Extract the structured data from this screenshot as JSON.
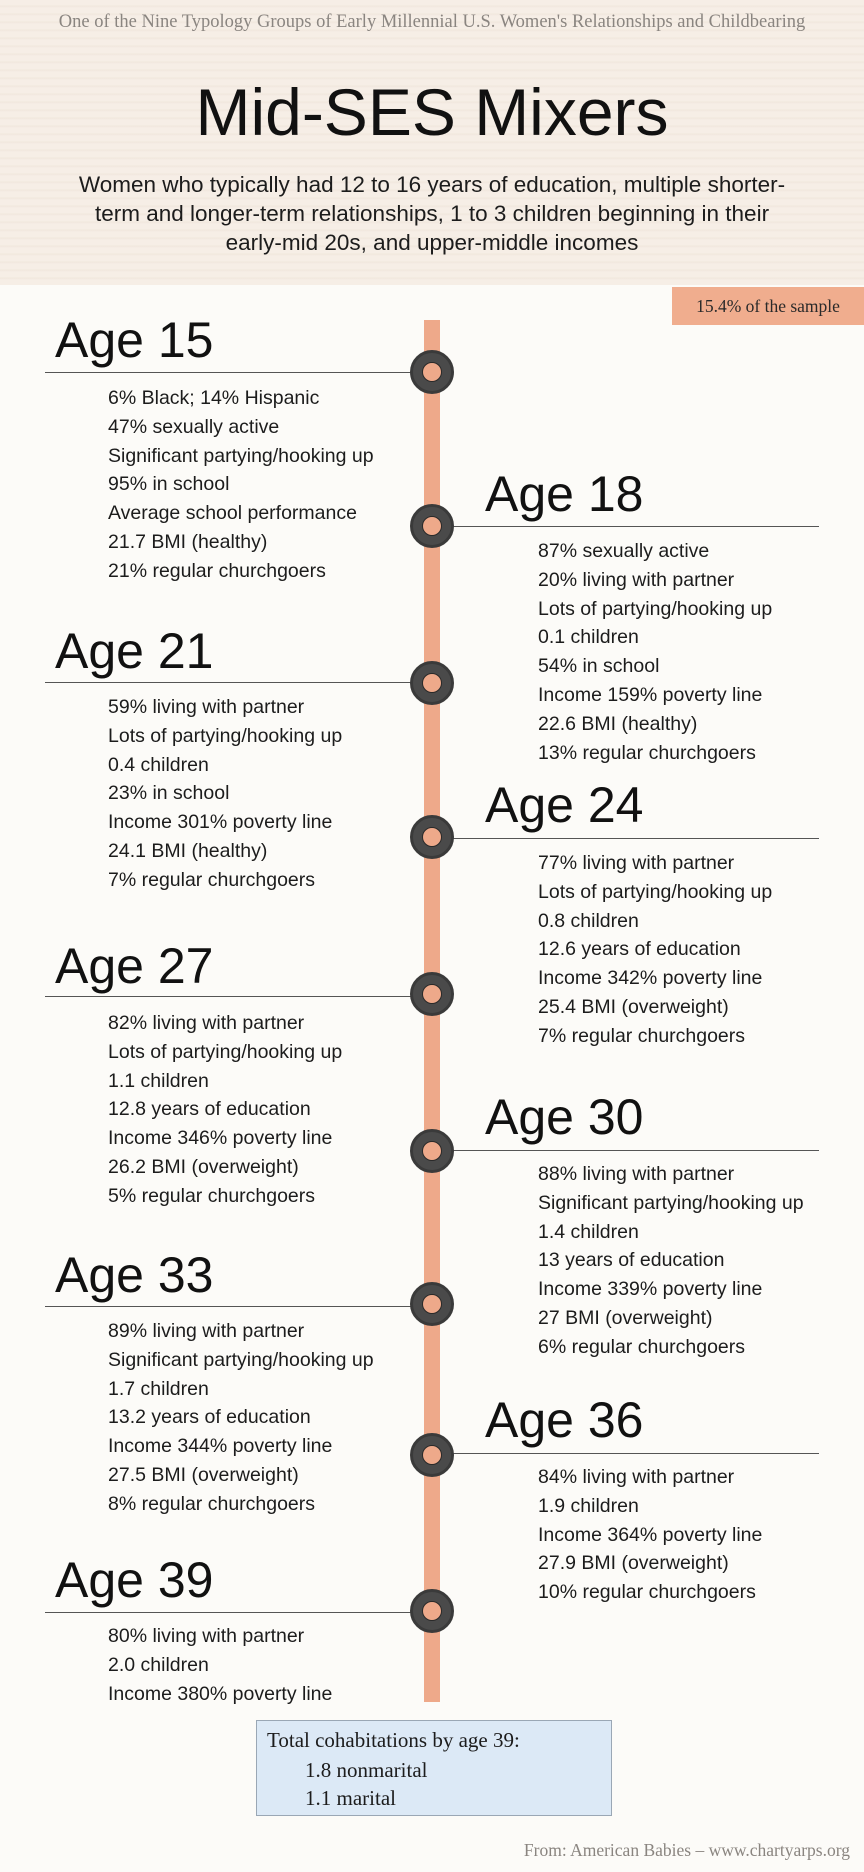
{
  "header": {
    "kicker": "One of the Nine Typology Groups of Early Millennial U.S. Women's Relationships and Childbearing",
    "title": "Mid-SES Mixers",
    "subtitle_lines": [
      "Women who typically had 12 to 16 years of education, multiple shorter-",
      "term and longer-term relationships, 1 to 3 children beginning in their",
      "early-mid 20s, and upper-middle incomes"
    ]
  },
  "sample_badge": "15.4% of the sample",
  "colors": {
    "accent": "#eea98a",
    "node_ring": "#4a4a4a",
    "header_bg": "#f6eee6",
    "cohab_bg": "#dce9f6"
  },
  "timeline": [
    {
      "age": "Age 15",
      "side": "left",
      "stats": [
        "6% Black; 14% Hispanic",
        "47% sexually active",
        "Significant partying/hooking up",
        "95% in school",
        "Average school performance",
        "21.7 BMI (healthy)",
        "21% regular churchgoers"
      ]
    },
    {
      "age": "Age 18",
      "side": "right",
      "stats": [
        "87% sexually active",
        "20% living with partner",
        "Lots of partying/hooking up",
        "0.1 children",
        "54% in school",
        "Income 159% poverty line",
        "22.6 BMI (healthy)",
        "13% regular churchgoers"
      ]
    },
    {
      "age": "Age 21",
      "side": "left",
      "stats": [
        "59% living with partner",
        "Lots of partying/hooking up",
        "0.4 children",
        "23% in school",
        "Income 301% poverty line",
        "24.1 BMI (healthy)",
        "7% regular churchgoers"
      ]
    },
    {
      "age": "Age 24",
      "side": "right",
      "stats": [
        "77% living with partner",
        "Lots of partying/hooking up",
        "0.8 children",
        "12.6 years of education",
        "Income 342% poverty line",
        "25.4 BMI (overweight)",
        "7% regular churchgoers"
      ]
    },
    {
      "age": "Age 27",
      "side": "left",
      "stats": [
        "82% living with partner",
        "Lots of partying/hooking up",
        "1.1 children",
        "12.8 years of education",
        "Income 346% poverty line",
        "26.2 BMI (overweight)",
        "5% regular churchgoers"
      ]
    },
    {
      "age": "Age 30",
      "side": "right",
      "stats": [
        "88% living with partner",
        "Significant partying/hooking up",
        "1.4 children",
        "13 years of education",
        "Income 339% poverty line",
        "27 BMI (overweight)",
        "6% regular churchgoers"
      ]
    },
    {
      "age": "Age 33",
      "side": "left",
      "stats": [
        "89% living with partner",
        "Significant partying/hooking up",
        "1.7 children",
        "13.2 years of education",
        "Income 344% poverty line",
        "27.5 BMI (overweight)",
        "8% regular churchgoers"
      ]
    },
    {
      "age": "Age 36",
      "side": "right",
      "stats": [
        "84% living with partner",
        "1.9 children",
        "Income 364% poverty line",
        "27.9 BMI (overweight)",
        "10% regular churchgoers"
      ]
    },
    {
      "age": "Age 39",
      "side": "left",
      "stats": [
        "80% living with partner",
        "2.0 children",
        "Income 380% poverty line"
      ]
    }
  ],
  "cohabitations": {
    "title": "Total cohabitations by age 39:",
    "nonmarital": "1.8 nonmarital",
    "marital": "1.1 marital"
  },
  "source": "From: American Babies – www.chartyarps.org"
}
